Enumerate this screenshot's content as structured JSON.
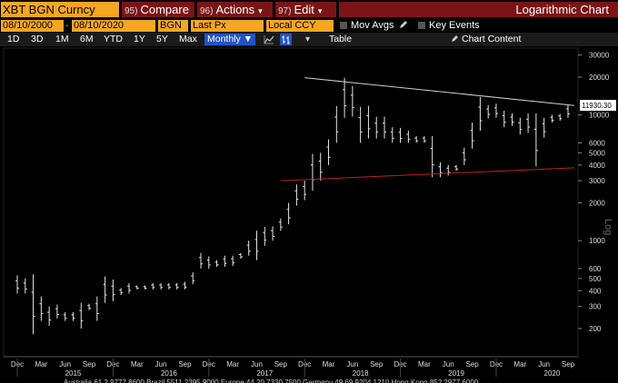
{
  "header": {
    "ticker": "XBT BGN Curncy",
    "compare_num": "95)",
    "compare_label": "Compare",
    "actions_num": "96)",
    "actions_label": "Actions",
    "edit_num": "97)",
    "edit_label": "Edit",
    "chevron": "▾",
    "title": "Logarithmic Chart"
  },
  "controls": {
    "start_date": "08/10/2000",
    "date_sep": "-",
    "end_date": "08/10/2020",
    "source": "BGN",
    "field": "Last Px",
    "currency": "Local CCY",
    "mov_avgs": "Mov Avgs",
    "key_events": "Key Events"
  },
  "ranges": {
    "items": [
      "1D",
      "3D",
      "1M",
      "6M",
      "YTD",
      "1Y",
      "5Y",
      "Max"
    ],
    "period": "Monthly ▼",
    "table": "Table",
    "chart_content": "Chart Content"
  },
  "colors": {
    "amber": "#f5a623",
    "header_red": "#7a1417",
    "active_blue": "#2453c4",
    "resistance_line": "#cfcfcf",
    "support_line": "#c0201e"
  },
  "chart_data": {
    "type": "ohlc",
    "scale": "log",
    "ylim": [
      120,
      32000
    ],
    "y_ticks": [
      200,
      300,
      400,
      500,
      600,
      1000,
      2000,
      3000,
      4000,
      5000,
      6000,
      10000,
      20000,
      30000
    ],
    "y_axis_label": "Log",
    "last_price_label": "11930.30",
    "last_price": 11930.3,
    "x_months": [
      "Dec",
      "Mar",
      "Jun",
      "Sep",
      "Dec",
      "Mar",
      "Jun",
      "Sep",
      "Dec",
      "Mar",
      "Jun",
      "Sep",
      "Dec",
      "Mar",
      "Jun",
      "Sep",
      "Dec",
      "Mar",
      "Jun",
      "Sep",
      "Dec",
      "Mar",
      "Jun",
      "Sep"
    ],
    "x_years": [
      "2015",
      "2016",
      "2017",
      "2018",
      "2019",
      "2020"
    ],
    "bars": [
      [
        530,
        380
      ],
      [
        500,
        380
      ],
      [
        540,
        180
      ],
      [
        360,
        230
      ],
      [
        300,
        210
      ],
      [
        310,
        240
      ],
      [
        270,
        230
      ],
      [
        270,
        230
      ],
      [
        320,
        200
      ],
      [
        315,
        280
      ],
      [
        360,
        230
      ],
      [
        520,
        320
      ],
      [
        490,
        330
      ],
      [
        420,
        370
      ],
      [
        460,
        380
      ],
      [
        440,
        410
      ],
      [
        440,
        410
      ],
      [
        460,
        410
      ],
      [
        460,
        410
      ],
      [
        460,
        410
      ],
      [
        460,
        410
      ],
      [
        470,
        410
      ],
      [
        560,
        450
      ],
      [
        800,
        600
      ],
      [
        750,
        600
      ],
      [
        700,
        620
      ],
      [
        760,
        620
      ],
      [
        760,
        630
      ],
      [
        800,
        720
      ],
      [
        1000,
        760
      ],
      [
        1200,
        700
      ],
      [
        1290,
        910
      ],
      [
        1300,
        1000
      ],
      [
        1500,
        1200
      ],
      [
        2000,
        1350
      ],
      [
        2800,
        1900
      ],
      [
        3000,
        2100
      ],
      [
        4900,
        2500
      ],
      [
        5000,
        3000
      ],
      [
        6400,
        4000
      ],
      [
        11800,
        6000
      ],
      [
        19800,
        9500
      ],
      [
        17000,
        9700
      ],
      [
        11600,
        6000
      ],
      [
        11800,
        6500
      ],
      [
        9700,
        6500
      ],
      [
        9700,
        6500
      ],
      [
        8000,
        6000
      ],
      [
        7900,
        6000
      ],
      [
        7500,
        6000
      ],
      [
        6800,
        6000
      ],
      [
        6800,
        6000
      ],
      [
        6800,
        3200
      ],
      [
        4200,
        3200
      ],
      [
        4000,
        3300
      ],
      [
        4000,
        3600
      ],
      [
        5500,
        4000
      ],
      [
        8700,
        5400
      ],
      [
        13900,
        7500
      ],
      [
        12000,
        9400
      ],
      [
        12300,
        9500
      ],
      [
        10800,
        8000
      ],
      [
        10300,
        8200
      ],
      [
        9500,
        7000
      ],
      [
        10300,
        7200
      ],
      [
        10300,
        3900
      ],
      [
        9500,
        6600
      ],
      [
        10000,
        8700
      ],
      [
        10200,
        9000
      ],
      [
        12000,
        9500
      ]
    ],
    "resistance_line": {
      "from": [
        "2017-12",
        19800
      ],
      "to": [
        "2020-08",
        11900
      ]
    },
    "support_line": {
      "from": [
        "2017-09",
        3000
      ],
      "to": [
        "2020-08",
        3800
      ]
    },
    "footer_note": "Australia 61 2 9777 8600 Brazil 5511 2395 9000 Europe 44 20 7330 7500 Germany 49 69 9204 1210 Hong Kong 852 2977 6000"
  }
}
